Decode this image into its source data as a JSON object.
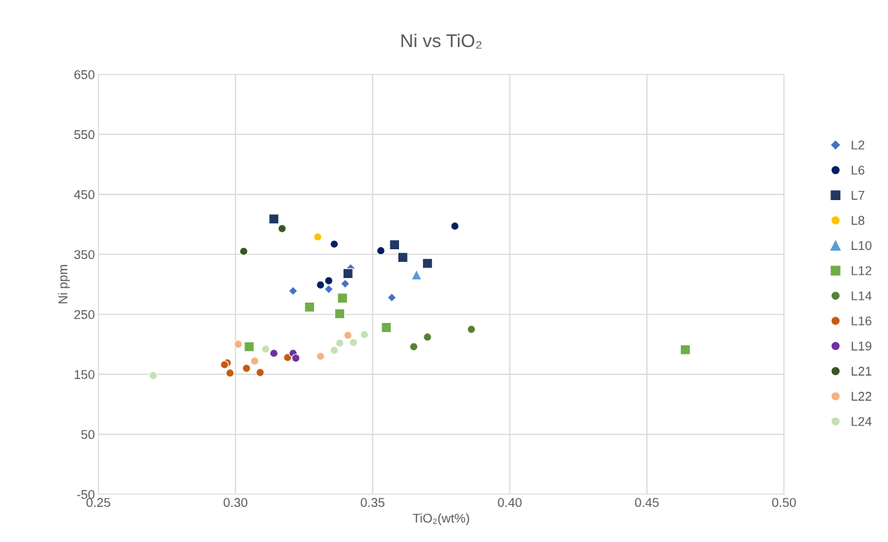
{
  "chart_data": {
    "type": "scatter",
    "title": "Ni vs TiO₂",
    "xlabel": "TiO₂(wt%)",
    "ylabel": "Ni ppm",
    "xlim": [
      0.25,
      0.5
    ],
    "xticks": [
      {
        "value": 0.25,
        "label": "0.25"
      },
      {
        "value": 0.3,
        "label": "0.30"
      },
      {
        "value": 0.35,
        "label": "0.35"
      },
      {
        "value": 0.4,
        "label": "0.40"
      },
      {
        "value": 0.45,
        "label": "0.45"
      },
      {
        "value": 0.5,
        "label": "0.50"
      }
    ],
    "ylim": [
      -50,
      650
    ],
    "yticks": [
      -50,
      50,
      150,
      250,
      350,
      450,
      550,
      650
    ],
    "grid": true,
    "legend": "right",
    "series": [
      {
        "name": "L2",
        "color": "#4472c4",
        "marker": "diamond",
        "x": [
          0.321,
          0.334,
          0.34,
          0.342,
          0.357
        ],
        "values": [
          289,
          292,
          301,
          327,
          278
        ]
      },
      {
        "name": "L6",
        "color": "#002060",
        "marker": "circle",
        "x": [
          0.331,
          0.334,
          0.336,
          0.353,
          0.38
        ],
        "values": [
          299,
          306,
          367,
          356,
          397
        ]
      },
      {
        "name": "L7",
        "color": "#1f3864",
        "marker": "square",
        "x": [
          0.314,
          0.341,
          0.358,
          0.361,
          0.37
        ],
        "values": [
          409,
          318,
          366,
          345,
          335
        ]
      },
      {
        "name": "L8",
        "color": "#ffc000",
        "marker": "circle",
        "x": [
          0.33
        ],
        "values": [
          379
        ]
      },
      {
        "name": "L10",
        "color": "#5b9bd5",
        "marker": "triangle",
        "x": [
          0.366
        ],
        "values": [
          316
        ]
      },
      {
        "name": "L12",
        "color": "#70ad47",
        "marker": "square",
        "x": [
          0.327,
          0.339,
          0.338,
          0.355,
          0.305,
          0.464
        ],
        "values": [
          262,
          277,
          251,
          228,
          196,
          191
        ]
      },
      {
        "name": "L14",
        "color": "#548235",
        "marker": "circle",
        "x": [
          0.365,
          0.37,
          0.386
        ],
        "values": [
          196,
          212,
          225
        ]
      },
      {
        "name": "L16",
        "color": "#c55a11",
        "marker": "circle",
        "x": [
          0.297,
          0.296,
          0.298,
          0.304,
          0.309,
          0.319
        ],
        "values": [
          169,
          166,
          152,
          160,
          153,
          178
        ]
      },
      {
        "name": "L19",
        "color": "#7030a0",
        "marker": "circle",
        "x": [
          0.314,
          0.321,
          0.322
        ],
        "values": [
          185,
          185,
          177
        ]
      },
      {
        "name": "L21",
        "color": "#375623",
        "marker": "circle",
        "x": [
          0.303,
          0.317
        ],
        "values": [
          355,
          393
        ]
      },
      {
        "name": "L22",
        "color": "#f4b183",
        "marker": "circle",
        "x": [
          0.301,
          0.307,
          0.331,
          0.341
        ],
        "values": [
          200,
          172,
          180,
          215
        ]
      },
      {
        "name": "L24",
        "color": "#c5e0b4",
        "marker": "circle",
        "x": [
          0.27,
          0.311,
          0.336,
          0.338,
          0.343,
          0.347
        ],
        "values": [
          148,
          192,
          190,
          202,
          203,
          216
        ]
      }
    ]
  }
}
